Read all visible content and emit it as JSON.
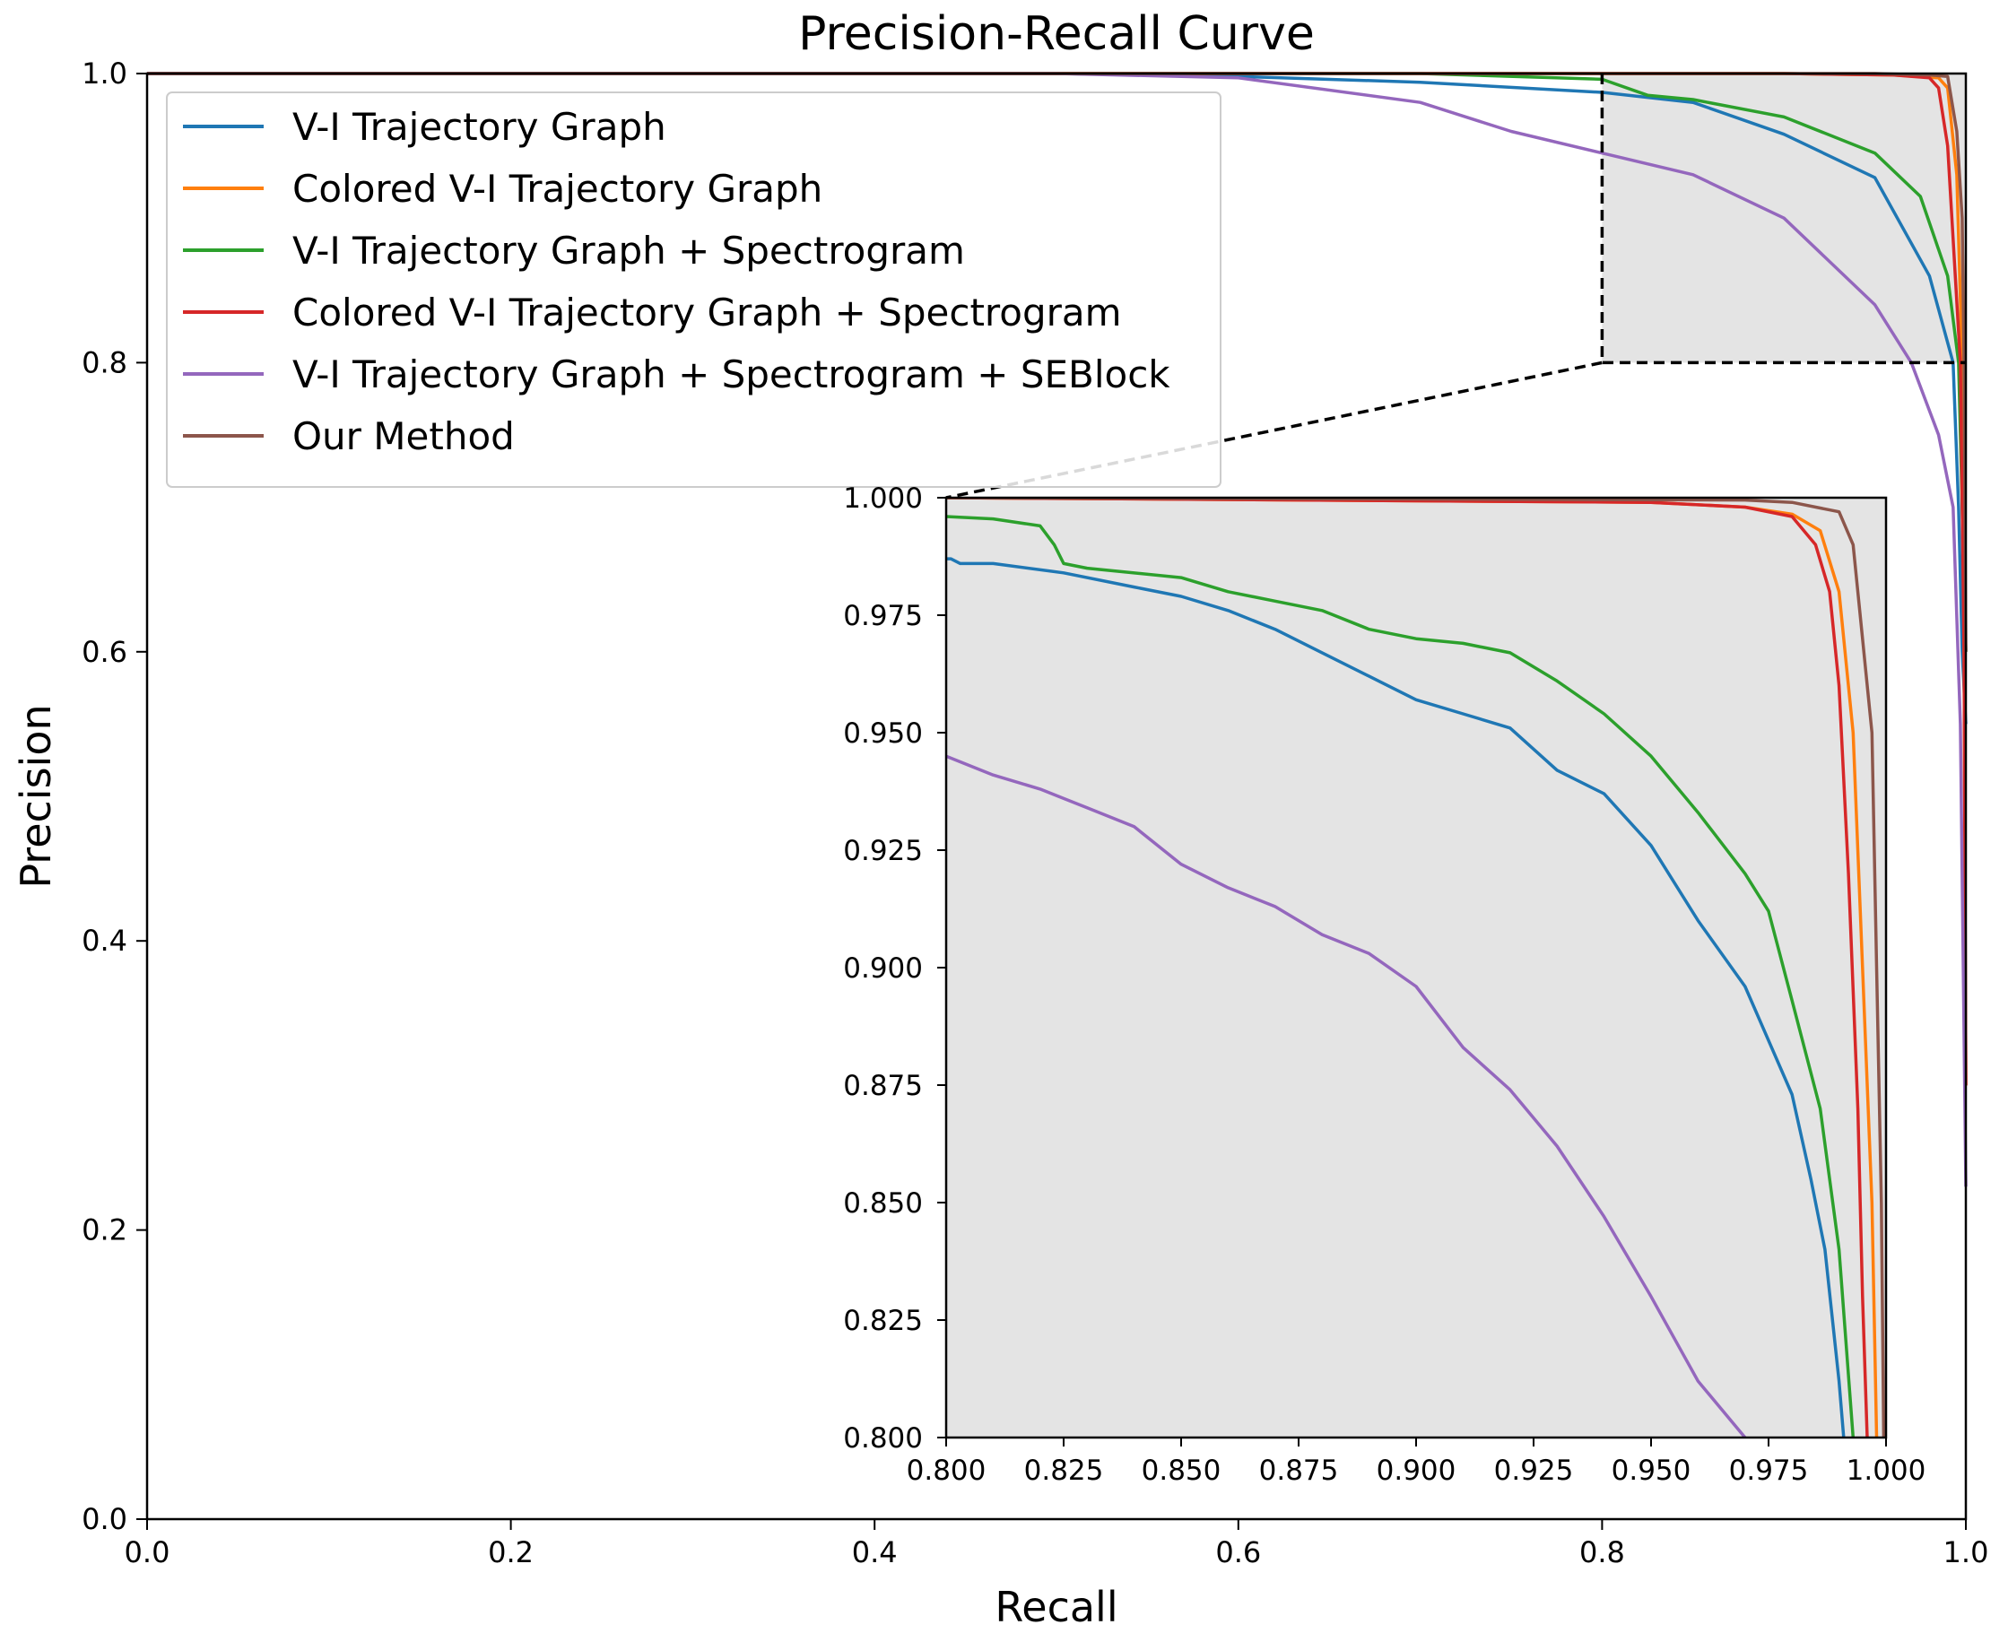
{
  "chart_data": [
    {
      "type": "line",
      "panel": "main",
      "title": "Precision-Recall Curve",
      "xlabel": "Recall",
      "ylabel": "Precision",
      "xlim": [
        0.0,
        1.0
      ],
      "ylim": [
        0.0,
        1.0
      ],
      "xticks": [
        0.0,
        0.2,
        0.4,
        0.6,
        0.8,
        1.0
      ],
      "xtick_labels": [
        "0.0",
        "0.2",
        "0.4",
        "0.6",
        "0.8",
        "1.0"
      ],
      "yticks": [
        0.0,
        0.2,
        0.4,
        0.6,
        0.8,
        1.0
      ],
      "ytick_labels": [
        "0.0",
        "0.2",
        "0.4",
        "0.6",
        "0.8",
        "1.0"
      ],
      "grid": false,
      "legend_position": "top-left",
      "zoom_region": {
        "x": [
          0.8,
          1.0
        ],
        "y": [
          0.8,
          1.0
        ]
      },
      "series": [
        {
          "name": "V-I Trajectory Graph",
          "color": "#1f77b4",
          "points": [
            [
              0.0,
              1.0
            ],
            [
              0.5,
              1.0
            ],
            [
              0.6,
              0.998
            ],
            [
              0.7,
              0.994
            ],
            [
              0.8,
              0.987
            ],
            [
              0.85,
              0.98
            ],
            [
              0.9,
              0.958
            ],
            [
              0.95,
              0.928
            ],
            [
              0.98,
              0.86
            ],
            [
              0.993,
              0.8
            ],
            [
              0.996,
              0.7
            ],
            [
              0.998,
              0.6
            ],
            [
              1.0,
              0.55
            ]
          ]
        },
        {
          "name": "Colored V-I Trajectory Graph",
          "color": "#ff7f0e",
          "points": [
            [
              0.0,
              1.0
            ],
            [
              0.9,
              1.0
            ],
            [
              0.96,
              0.999
            ],
            [
              0.985,
              0.997
            ],
            [
              0.99,
              0.99
            ],
            [
              0.995,
              0.93
            ],
            [
              0.998,
              0.8
            ],
            [
              0.999,
              0.6
            ],
            [
              1.0,
              0.3
            ]
          ]
        },
        {
          "name": "V-I Trajectory Graph + Spectrogram",
          "color": "#2ca02c",
          "points": [
            [
              0.0,
              1.0
            ],
            [
              0.7,
              1.0
            ],
            [
              0.8,
              0.996
            ],
            [
              0.825,
              0.985
            ],
            [
              0.85,
              0.982
            ],
            [
              0.9,
              0.97
            ],
            [
              0.95,
              0.945
            ],
            [
              0.975,
              0.915
            ],
            [
              0.99,
              0.86
            ],
            [
              0.996,
              0.8
            ],
            [
              0.998,
              0.7
            ],
            [
              1.0,
              0.6
            ]
          ]
        },
        {
          "name": "Colored V-I Trajectory Graph + Spectrogram",
          "color": "#d62728",
          "points": [
            [
              0.0,
              1.0
            ],
            [
              0.9,
              1.0
            ],
            [
              0.96,
              0.999
            ],
            [
              0.98,
              0.997
            ],
            [
              0.985,
              0.99
            ],
            [
              0.99,
              0.95
            ],
            [
              0.997,
              0.8
            ],
            [
              0.999,
              0.6
            ],
            [
              1.0,
              0.3
            ]
          ]
        },
        {
          "name": "V-I Trajectory Graph + Spectrogram + SEBlock",
          "color": "#9467bd",
          "points": [
            [
              0.0,
              1.0
            ],
            [
              0.5,
              1.0
            ],
            [
              0.6,
              0.997
            ],
            [
              0.7,
              0.98
            ],
            [
              0.75,
              0.96
            ],
            [
              0.8,
              0.945
            ],
            [
              0.85,
              0.93
            ],
            [
              0.9,
              0.9
            ],
            [
              0.95,
              0.84
            ],
            [
              0.97,
              0.8
            ],
            [
              0.985,
              0.75
            ],
            [
              0.993,
              0.7
            ],
            [
              0.997,
              0.55
            ],
            [
              1.0,
              0.23
            ]
          ]
        },
        {
          "name": "Our Method",
          "color": "#8c564b",
          "points": [
            [
              0.0,
              1.0
            ],
            [
              0.95,
              1.0
            ],
            [
              0.98,
              0.999
            ],
            [
              0.99,
              0.998
            ],
            [
              0.995,
              0.96
            ],
            [
              0.998,
              0.9
            ],
            [
              0.999,
              0.8
            ],
            [
              1.0,
              0.6
            ]
          ]
        }
      ]
    },
    {
      "type": "line",
      "panel": "inset",
      "title": "",
      "xlabel": "",
      "ylabel": "",
      "xlim": [
        0.8,
        1.0
      ],
      "ylim": [
        0.8,
        1.0
      ],
      "xticks": [
        0.8,
        0.825,
        0.85,
        0.875,
        0.9,
        0.925,
        0.95,
        0.975,
        1.0
      ],
      "xtick_labels": [
        "0.800",
        "0.825",
        "0.850",
        "0.875",
        "0.900",
        "0.925",
        "0.950",
        "0.975",
        "1.000"
      ],
      "yticks": [
        0.8,
        0.825,
        0.85,
        0.875,
        0.9,
        0.925,
        0.95,
        0.975,
        1.0
      ],
      "ytick_labels": [
        "0.800",
        "0.825",
        "0.850",
        "0.875",
        "0.900",
        "0.925",
        "0.950",
        "0.975",
        "1.000"
      ],
      "grid": false,
      "background": "#e4e4e4",
      "series": [
        {
          "name": "V-I Trajectory Graph",
          "color": "#1f77b4",
          "points": [
            [
              0.8,
              0.987
            ],
            [
              0.801,
              0.987
            ],
            [
              0.803,
              0.986
            ],
            [
              0.81,
              0.986
            ],
            [
              0.825,
              0.984
            ],
            [
              0.84,
              0.981
            ],
            [
              0.85,
              0.979
            ],
            [
              0.86,
              0.976
            ],
            [
              0.87,
              0.972
            ],
            [
              0.88,
              0.967
            ],
            [
              0.89,
              0.962
            ],
            [
              0.9,
              0.957
            ],
            [
              0.91,
              0.954
            ],
            [
              0.92,
              0.951
            ],
            [
              0.93,
              0.942
            ],
            [
              0.94,
              0.937
            ],
            [
              0.95,
              0.926
            ],
            [
              0.96,
              0.91
            ],
            [
              0.97,
              0.896
            ],
            [
              0.98,
              0.873
            ],
            [
              0.984,
              0.855
            ],
            [
              0.987,
              0.84
            ],
            [
              0.99,
              0.812
            ],
            [
              0.991,
              0.8
            ]
          ]
        },
        {
          "name": "Colored V-I Trajectory Graph",
          "color": "#ff7f0e",
          "points": [
            [
              0.8,
              1.0
            ],
            [
              0.95,
              0.999
            ],
            [
              0.97,
              0.998
            ],
            [
              0.98,
              0.9965
            ],
            [
              0.986,
              0.993
            ],
            [
              0.99,
              0.98
            ],
            [
              0.993,
              0.95
            ],
            [
              0.995,
              0.9
            ],
            [
              0.997,
              0.85
            ],
            [
              0.998,
              0.8
            ]
          ]
        },
        {
          "name": "V-I Trajectory Graph + Spectrogram",
          "color": "#2ca02c",
          "points": [
            [
              0.8,
              0.996
            ],
            [
              0.81,
              0.9955
            ],
            [
              0.82,
              0.994
            ],
            [
              0.823,
              0.99
            ],
            [
              0.825,
              0.986
            ],
            [
              0.83,
              0.985
            ],
            [
              0.85,
              0.983
            ],
            [
              0.86,
              0.98
            ],
            [
              0.87,
              0.978
            ],
            [
              0.88,
              0.976
            ],
            [
              0.89,
              0.972
            ],
            [
              0.9,
              0.97
            ],
            [
              0.91,
              0.969
            ],
            [
              0.92,
              0.967
            ],
            [
              0.93,
              0.961
            ],
            [
              0.94,
              0.954
            ],
            [
              0.95,
              0.945
            ],
            [
              0.96,
              0.933
            ],
            [
              0.97,
              0.92
            ],
            [
              0.975,
              0.912
            ],
            [
              0.98,
              0.893
            ],
            [
              0.986,
              0.87
            ],
            [
              0.99,
              0.84
            ],
            [
              0.993,
              0.8
            ]
          ]
        },
        {
          "name": "Colored V-I Trajectory Graph + Spectrogram",
          "color": "#d62728",
          "points": [
            [
              0.8,
              1.0
            ],
            [
              0.95,
              0.999
            ],
            [
              0.97,
              0.998
            ],
            [
              0.98,
              0.996
            ],
            [
              0.985,
              0.99
            ],
            [
              0.988,
              0.98
            ],
            [
              0.99,
              0.96
            ],
            [
              0.992,
              0.92
            ],
            [
              0.994,
              0.87
            ],
            [
              0.995,
              0.83
            ],
            [
              0.996,
              0.8
            ]
          ]
        },
        {
          "name": "V-I Trajectory Graph + Spectrogram + SEBlock",
          "color": "#9467bd",
          "points": [
            [
              0.8,
              0.945
            ],
            [
              0.81,
              0.941
            ],
            [
              0.82,
              0.938
            ],
            [
              0.83,
              0.934
            ],
            [
              0.84,
              0.93
            ],
            [
              0.85,
              0.922
            ],
            [
              0.86,
              0.917
            ],
            [
              0.87,
              0.913
            ],
            [
              0.88,
              0.907
            ],
            [
              0.89,
              0.903
            ],
            [
              0.9,
              0.896
            ],
            [
              0.91,
              0.883
            ],
            [
              0.92,
              0.874
            ],
            [
              0.93,
              0.862
            ],
            [
              0.94,
              0.847
            ],
            [
              0.95,
              0.83
            ],
            [
              0.96,
              0.812
            ],
            [
              0.97,
              0.8
            ]
          ]
        },
        {
          "name": "Our Method",
          "color": "#8c564b",
          "points": [
            [
              0.8,
              1.0
            ],
            [
              0.97,
              0.9995
            ],
            [
              0.98,
              0.999
            ],
            [
              0.99,
              0.997
            ],
            [
              0.993,
              0.99
            ],
            [
              0.995,
              0.97
            ],
            [
              0.997,
              0.95
            ],
            [
              0.998,
              0.9
            ],
            [
              0.999,
              0.85
            ],
            [
              0.9995,
              0.8
            ]
          ]
        }
      ]
    }
  ]
}
